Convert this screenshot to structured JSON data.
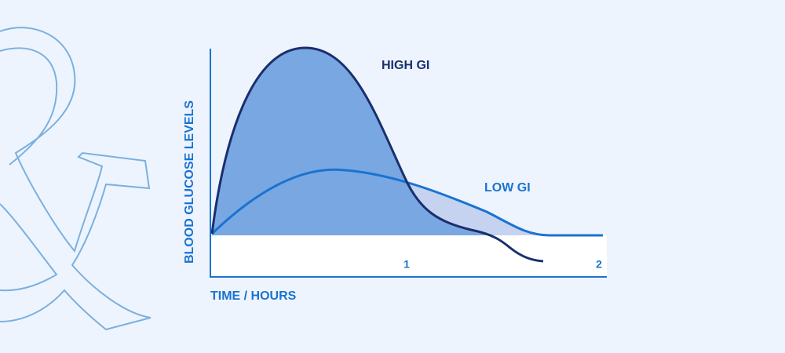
{
  "y_axis_label": "BLOOD GLUCOSE LEVELS",
  "x_axis_label": "TIME / HOURS",
  "x_ticks": [
    "1",
    "2"
  ],
  "curves": [
    {
      "label": "HIGH GI"
    },
    {
      "label": "LOW GI"
    }
  ]
}
